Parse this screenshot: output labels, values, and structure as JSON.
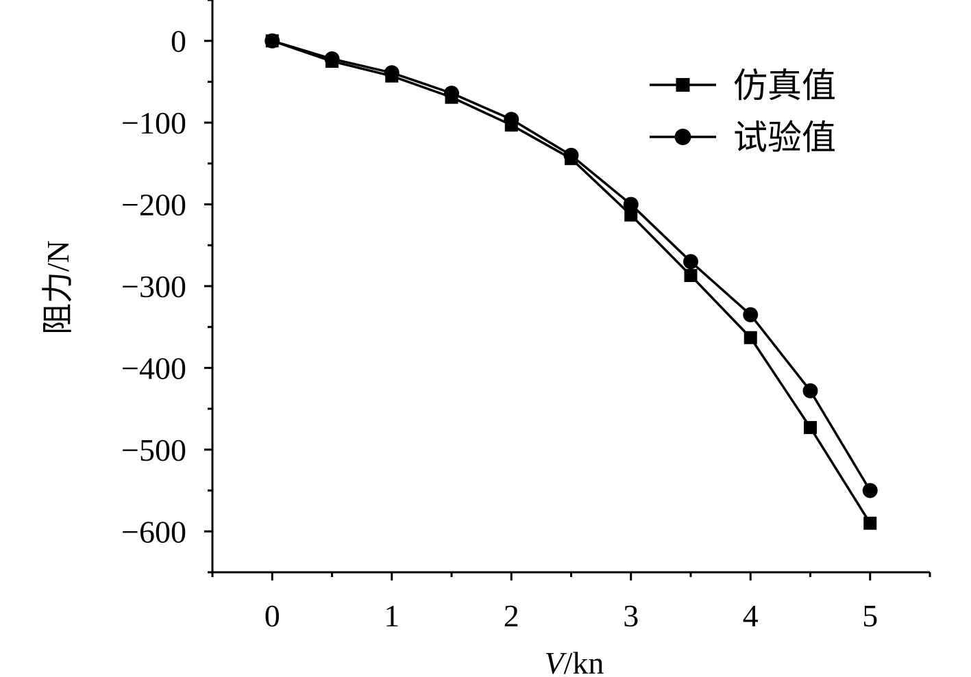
{
  "chart_data": {
    "type": "line",
    "x": [
      0,
      0.5,
      1,
      1.5,
      2,
      2.5,
      3,
      3.5,
      4,
      4.5,
      5
    ],
    "series": [
      {
        "name": "仿真值",
        "marker": "square",
        "values": [
          0,
          -25,
          -43,
          -69,
          -103,
          -144,
          -213,
          -287,
          -363,
          -473,
          -590
        ]
      },
      {
        "name": "试验值",
        "marker": "circle",
        "values": [
          0,
          -22,
          -39,
          -64,
          -96,
          -140,
          -200,
          -270,
          -335,
          -428,
          -550
        ]
      }
    ],
    "xlabel_italic": "V",
    "xlabel_rest": "/kn",
    "ylabel": "阻力/N",
    "xlim": [
      -0.5,
      5.5
    ],
    "ylim": [
      -650,
      50
    ],
    "xticks": [
      0,
      1,
      2,
      3,
      4,
      5
    ],
    "yticks": [
      0,
      -100,
      -200,
      -300,
      -400,
      -500,
      -600
    ],
    "ytick_labels": [
      "0",
      "−100",
      "−200",
      "−300",
      "−400",
      "−500",
      "−600"
    ],
    "grid": false,
    "legend_position": "top-right",
    "line_color": "#000000"
  }
}
